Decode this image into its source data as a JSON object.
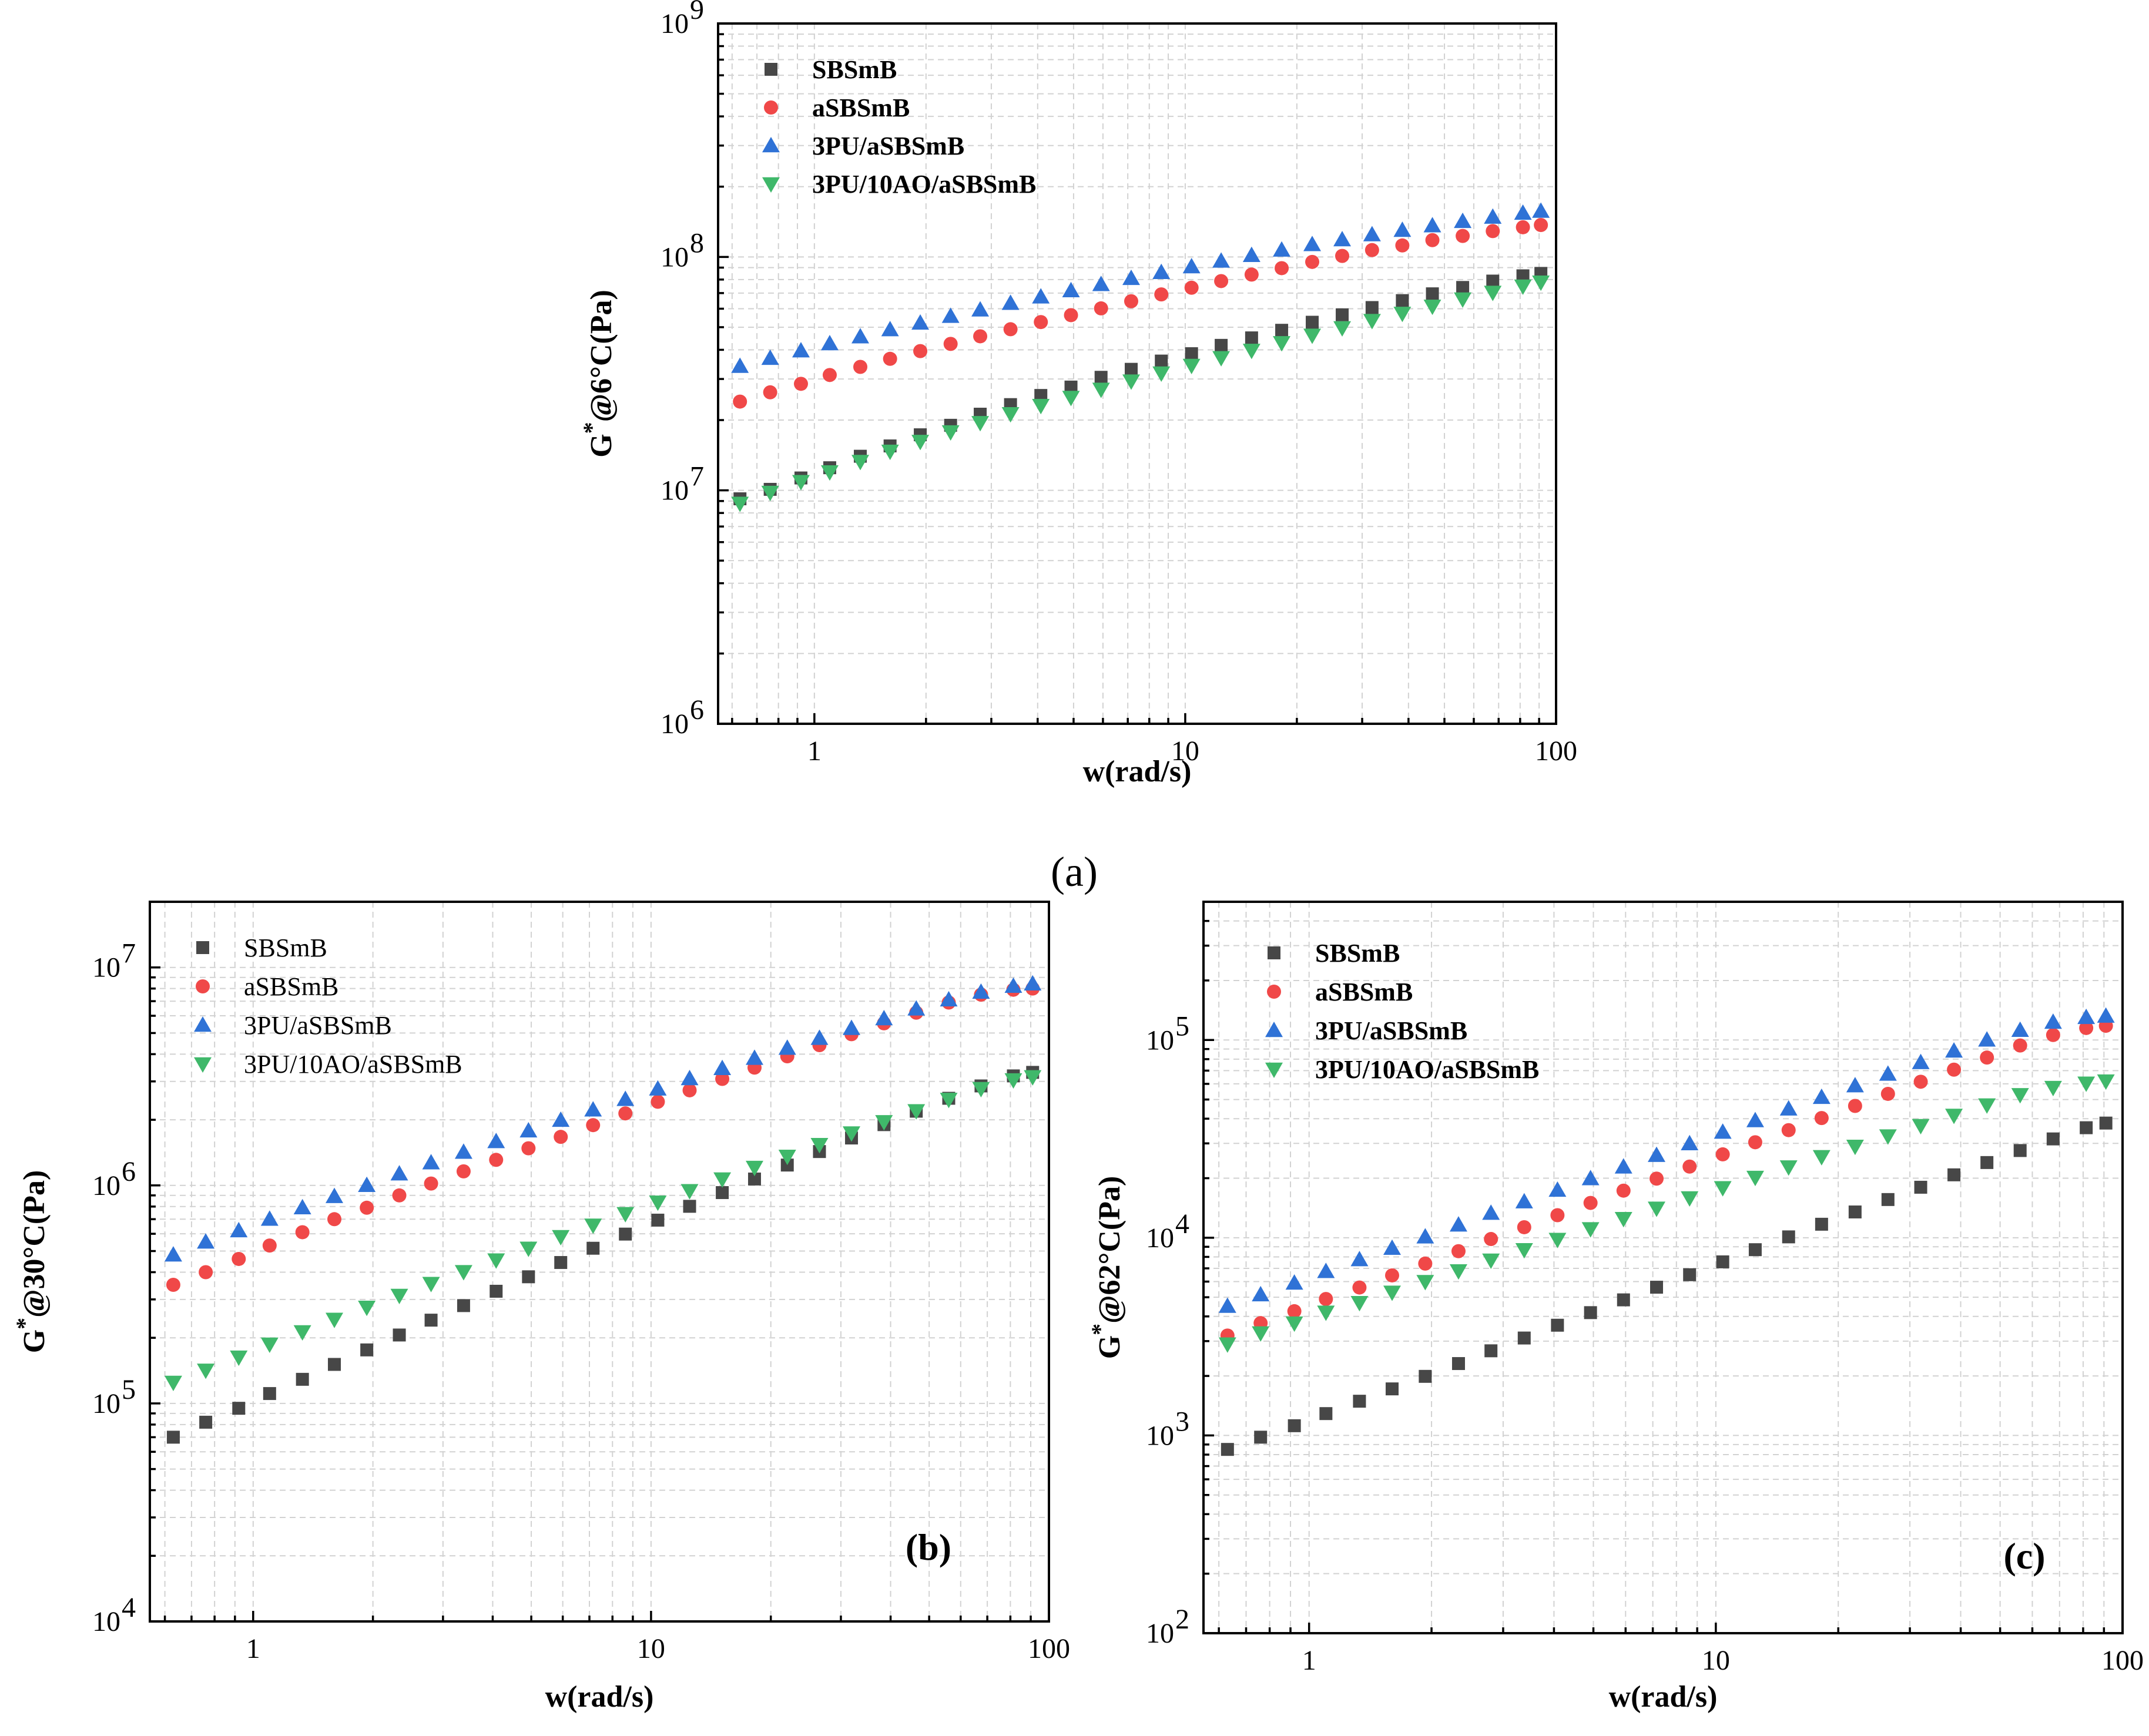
{
  "colors": {
    "SBSmB": "#474747",
    "aSBSmB": "#f04848",
    "3PU/aSBSmB": "#2f72d6",
    "3PU/10AO/aSBSmB": "#3fb86a"
  },
  "markers": {
    "SBSmB": "square",
    "aSBSmB": "circle",
    "3PU/aSBSmB": "triangle-up",
    "3PU/10AO/aSBSmB": "triangle-down"
  },
  "caption_a": "(a)",
  "chart_data": [
    {
      "id": "a",
      "type": "scatter",
      "panel_label": "",
      "xlabel": "w(rad/s)",
      "ylabel_base": "G",
      "ylabel_sup": "*",
      "ylabel_rest": "@6°C(Pa)",
      "x_scale": "log",
      "y_scale": "log",
      "xlim": [
        0.55,
        100
      ],
      "ylim": [
        1000000,
        1000000000
      ],
      "x_ticks": [
        {
          "v": 1,
          "label": "1"
        },
        {
          "v": 10,
          "label": "10"
        },
        {
          "v": 100,
          "label": "100"
        }
      ],
      "y_ticks": [
        {
          "v": 1000000,
          "base": "10",
          "exp": "6"
        },
        {
          "v": 10000000,
          "base": "10",
          "exp": "7"
        },
        {
          "v": 100000000,
          "base": "10",
          "exp": "8"
        },
        {
          "v": 1000000000,
          "base": "10",
          "exp": "9"
        }
      ],
      "legend_position": "top-left",
      "legend_bold": true,
      "x": [
        0.63,
        0.76,
        0.92,
        1.1,
        1.33,
        1.6,
        1.93,
        2.33,
        2.8,
        3.38,
        4.08,
        4.92,
        5.93,
        7.15,
        8.62,
        10.4,
        12.5,
        15.1,
        18.2,
        22,
        26.5,
        31.9,
        38.5,
        46.4,
        56,
        67.5,
        81.4,
        91
      ],
      "series": [
        {
          "name": "SBSmB",
          "values": [
            9200000,
            10100000,
            11300000,
            12500000,
            14000000,
            15500000,
            17300000,
            19000000,
            21200000,
            23300000,
            25500000,
            27700000,
            30500000,
            33000000,
            35800000,
            38500000,
            41800000,
            45000000,
            48500000,
            52500000,
            56500000,
            60700000,
            65000000,
            69500000,
            74000000,
            78800000,
            83000000,
            85000000
          ]
        },
        {
          "name": "aSBSmB",
          "values": [
            24000000,
            26300000,
            28600000,
            31200000,
            33800000,
            36600000,
            39500000,
            42400000,
            45700000,
            49000000,
            52600000,
            56300000,
            60200000,
            64600000,
            69100000,
            73800000,
            78800000,
            84000000,
            89500000,
            95200000,
            101000000,
            107000000,
            112000000,
            118000000,
            123000000,
            129000000,
            134000000,
            137000000
          ]
        },
        {
          "name": "3PU/aSBSmB",
          "values": [
            34000000,
            36800000,
            39600000,
            42500000,
            45500000,
            48800000,
            52100000,
            55700000,
            59300000,
            63300000,
            67400000,
            71700000,
            76200000,
            80900000,
            85800000,
            90800000,
            96000000,
            101500000,
            107000000,
            113000000,
            118500000,
            124500000,
            130000000,
            136000000,
            142000000,
            148000000,
            154000000,
            157000000
          ]
        },
        {
          "name": "3PU/10AO/aSBSmB",
          "values": [
            8800000,
            9800000,
            10900000,
            12000000,
            13300000,
            14700000,
            16200000,
            17800000,
            19500000,
            21300000,
            23100000,
            25000000,
            27100000,
            29400000,
            31800000,
            34300000,
            37000000,
            39800000,
            42900000,
            46200000,
            49700000,
            53400000,
            57300000,
            61500000,
            66000000,
            70500000,
            75000000,
            78000000
          ]
        }
      ]
    },
    {
      "id": "b",
      "type": "scatter",
      "panel_label": "(b)",
      "xlabel": "w(rad/s)",
      "ylabel_base": "G",
      "ylabel_sup": "*",
      "ylabel_rest": "@30°C(Pa)",
      "x_scale": "log",
      "y_scale": "log",
      "xlim": [
        0.55,
        100
      ],
      "ylim": [
        10000,
        20000000
      ],
      "x_ticks": [
        {
          "v": 1,
          "label": "1"
        },
        {
          "v": 10,
          "label": "10"
        },
        {
          "v": 100,
          "label": "100"
        }
      ],
      "y_ticks": [
        {
          "v": 10000,
          "base": "10",
          "exp": "4"
        },
        {
          "v": 100000,
          "base": "10",
          "exp": "5"
        },
        {
          "v": 1000000,
          "base": "10",
          "exp": "6"
        },
        {
          "v": 10000000,
          "base": "10",
          "exp": "7"
        }
      ],
      "legend_position": "top-left",
      "legend_bold": false,
      "x": [
        0.63,
        0.76,
        0.92,
        1.1,
        1.33,
        1.6,
        1.93,
        2.33,
        2.8,
        3.38,
        4.08,
        4.92,
        5.93,
        7.15,
        8.62,
        10.4,
        12.5,
        15.1,
        18.2,
        22,
        26.5,
        31.9,
        38.5,
        46.4,
        56,
        67.5,
        81.4,
        91
      ],
      "series": [
        {
          "name": "SBSmB",
          "values": [
            70000,
            82000,
            95000,
            111000,
            129000,
            151000,
            176000,
            206000,
            241000,
            281000,
            327000,
            381000,
            443000,
            515000,
            598000,
            693000,
            802000,
            927000,
            1070000,
            1240000,
            1430000,
            1650000,
            1900000,
            2190000,
            2510000,
            2860000,
            3180000,
            3300000
          ]
        },
        {
          "name": "aSBSmB",
          "values": [
            350000,
            400000,
            460000,
            530000,
            610000,
            700000,
            790000,
            900000,
            1020000,
            1160000,
            1310000,
            1480000,
            1670000,
            1890000,
            2140000,
            2420000,
            2730000,
            3080000,
            3470000,
            3910000,
            4400000,
            4940000,
            5540000,
            6200000,
            6900000,
            7500000,
            7900000,
            8000000
          ]
        },
        {
          "name": "3PU/aSBSmB",
          "values": [
            480000,
            550000,
            620000,
            700000,
            790000,
            890000,
            1000000,
            1130000,
            1270000,
            1420000,
            1590000,
            1780000,
            1990000,
            2220000,
            2480000,
            2770000,
            3090000,
            3440000,
            3830000,
            4260000,
            4730000,
            5250000,
            5820000,
            6450000,
            7100000,
            7700000,
            8200000,
            8400000
          ]
        },
        {
          "name": "3PU/10AO/aSBSmB",
          "values": [
            125000,
            142000,
            163000,
            187000,
            213000,
            243000,
            276000,
            313000,
            355000,
            402000,
            455000,
            515000,
            582000,
            657000,
            742000,
            838000,
            946000,
            1070000,
            1210000,
            1360000,
            1540000,
            1740000,
            1960000,
            2200000,
            2480000,
            2780000,
            3050000,
            3150000
          ]
        }
      ]
    },
    {
      "id": "c",
      "type": "scatter",
      "panel_label": "(c)",
      "xlabel": "w(rad/s)",
      "ylabel_base": "G",
      "ylabel_sup": "*",
      "ylabel_rest": "@62°C(Pa)",
      "x_scale": "log",
      "y_scale": "log",
      "xlim": [
        0.55,
        100
      ],
      "ylim": [
        100,
        500000
      ],
      "x_ticks": [
        {
          "v": 1,
          "label": "1"
        },
        {
          "v": 10,
          "label": "10"
        },
        {
          "v": 100,
          "label": "100"
        }
      ],
      "y_ticks": [
        {
          "v": 100,
          "base": "10",
          "exp": "2"
        },
        {
          "v": 1000,
          "base": "10",
          "exp": "3"
        },
        {
          "v": 10000,
          "base": "10",
          "exp": "4"
        },
        {
          "v": 100000,
          "base": "10",
          "exp": "5"
        }
      ],
      "legend_position": "top-left",
      "legend_bold": true,
      "x": [
        0.63,
        0.76,
        0.92,
        1.1,
        1.33,
        1.6,
        1.93,
        2.33,
        2.8,
        3.38,
        4.08,
        4.92,
        5.93,
        7.15,
        8.62,
        10.4,
        12.5,
        15.1,
        18.2,
        22,
        26.5,
        31.9,
        38.5,
        46.4,
        56,
        67.5,
        81.4,
        91
      ],
      "series": [
        {
          "name": "SBSmB",
          "values": [
            850,
            980,
            1120,
            1290,
            1490,
            1720,
            1990,
            2310,
            2680,
            3110,
            3610,
            4180,
            4850,
            5620,
            6500,
            7550,
            8700,
            10100,
            11700,
            13500,
            15600,
            18000,
            20800,
            24000,
            27600,
            31600,
            36000,
            38000
          ]
        },
        {
          "name": "aSBSmB",
          "values": [
            3200,
            3700,
            4250,
            4900,
            5600,
            6450,
            7400,
            8550,
            9850,
            11300,
            13000,
            15000,
            17300,
            19900,
            22900,
            26400,
            30400,
            35000,
            40300,
            46400,
            53400,
            61500,
            70800,
            81500,
            93800,
            106000,
            115000,
            118000
          ]
        },
        {
          "name": "3PU/aSBSmB",
          "values": [
            4500,
            5150,
            5900,
            6750,
            7750,
            8850,
            10100,
            11600,
            13300,
            15200,
            17400,
            19900,
            22800,
            26100,
            29900,
            34200,
            39100,
            44800,
            51300,
            58700,
            67200,
            76900,
            88000,
            100000,
            112000,
            123000,
            130000,
            132000
          ]
        },
        {
          "name": "3PU/10AO/aSBSmB",
          "values": [
            2900,
            3300,
            3700,
            4200,
            4700,
            5300,
            6000,
            6800,
            7700,
            8700,
            9800,
            11100,
            12500,
            14100,
            15900,
            17900,
            20200,
            22800,
            25700,
            29000,
            32700,
            36900,
            41600,
            46900,
            52900,
            57500,
            60500,
            62000
          ]
        }
      ]
    }
  ]
}
